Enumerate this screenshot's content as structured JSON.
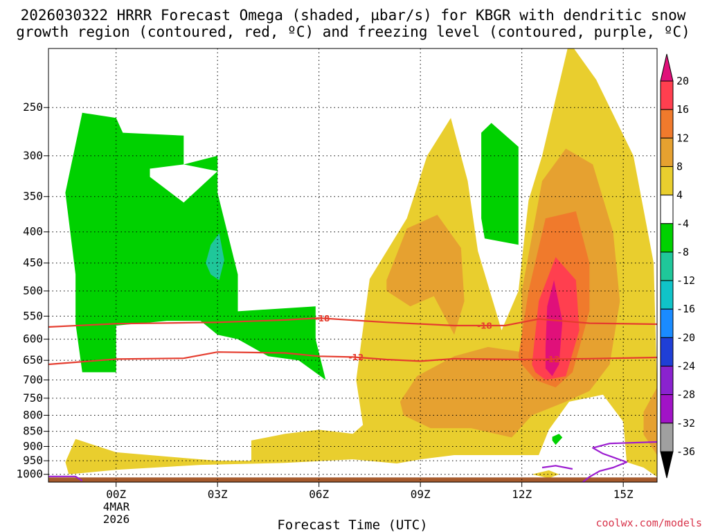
{
  "chart_data": {
    "type": "heatmap",
    "title": "2026030322 HRRR Forecast Omega (shaded, µbar/s) for KBGR with dendritic snow",
    "subtitle": "growth region (contoured, red, ºC) and freezing level (contoured, purple, ºC)",
    "xlabel": "Forecast Time (UTC)",
    "ylabel": "",
    "x_ticks": [
      "00Z",
      "03Z",
      "06Z",
      "09Z",
      "12Z",
      "15Z"
    ],
    "x_tick_hours": [
      0,
      3,
      6,
      9,
      12,
      15
    ],
    "x_date_label": [
      "4MAR",
      "2026"
    ],
    "xlim": [
      -2,
      16
    ],
    "y_ticks": [
      "250",
      "300",
      "350",
      "400",
      "450",
      "500",
      "550",
      "600",
      "650",
      "700",
      "750",
      "800",
      "850",
      "900",
      "950",
      "1000"
    ],
    "ylim": [
      1030,
      200
    ],
    "y_scale": "log-pressure",
    "grid": true,
    "colorbar": {
      "labels": [
        "20",
        "16",
        "12",
        "8",
        "4",
        "-4",
        "-8",
        "-12",
        "-16",
        "-20",
        "-24",
        "-28",
        "-32",
        "-36"
      ],
      "colors": [
        "#ff3f4f",
        "#f07a2c",
        "#e6a130",
        "#e9ce2e",
        "#ffffff",
        "#00d100",
        "#1fc79a",
        "#10c3c8",
        "#1a8bff",
        "#1f3fd6",
        "#8a22cf",
        "#a113c6",
        "#a0a0a0"
      ],
      "top_arrow_color": "#e0107a",
      "bottom_arrow_color": "#000000"
    },
    "contours": [
      {
        "name": "-18",
        "color": "#e53c2e",
        "points": [
          [
            -2,
            573
          ],
          [
            0,
            566
          ],
          [
            3,
            563
          ],
          [
            5,
            558
          ],
          [
            6,
            554
          ],
          [
            8,
            563
          ],
          [
            10,
            570
          ],
          [
            11.5,
            570
          ],
          [
            12.5,
            556
          ],
          [
            14,
            565
          ],
          [
            16,
            567
          ]
        ]
      },
      {
        "name": "-12",
        "color": "#e53c2e",
        "points": [
          [
            -2,
            660
          ],
          [
            0,
            647
          ],
          [
            2,
            645
          ],
          [
            3,
            630
          ],
          [
            5,
            632
          ],
          [
            6,
            640
          ],
          [
            7,
            642
          ],
          [
            8,
            648
          ],
          [
            9,
            652
          ],
          [
            10,
            646
          ],
          [
            12,
            648
          ],
          [
            14,
            646
          ],
          [
            16,
            643
          ]
        ]
      },
      {
        "name": "freezing level (0)",
        "color": "#9b1bd0",
        "points": [
          [
            -2.2,
            1008
          ],
          [
            -1.2,
            1008
          ],
          [
            -1,
            1025
          ]
        ]
      },
      {
        "name": "freezing level (0)",
        "color": "#9b1bd0",
        "points": [
          [
            16,
            885
          ],
          [
            14.6,
            890
          ],
          [
            14.1,
            905
          ],
          [
            14.4,
            925
          ],
          [
            15.1,
            955
          ],
          [
            14.7,
            975
          ],
          [
            14.3,
            988
          ],
          [
            14.0,
            1010
          ],
          [
            13.8,
            1030
          ]
        ]
      },
      {
        "name": "",
        "color": "#9b1bd0",
        "points": [
          [
            12.6,
            975
          ],
          [
            13,
            968
          ],
          [
            13.5,
            980
          ]
        ]
      }
    ],
    "contour_labels": [
      {
        "text": "-18",
        "x": 6.1,
        "y": 555
      },
      {
        "text": "-18",
        "x": 10.9,
        "y": 571
      },
      {
        "text": "-12",
        "x": 7.1,
        "y": 643
      },
      {
        "text": "-12",
        "x": 12.9,
        "y": 648
      }
    ],
    "shaded_regions": [
      {
        "value": "4 to 8",
        "color": "#e9ce2e",
        "points": [
          [
            -1.5,
            955
          ],
          [
            -1.2,
            875
          ],
          [
            0,
            920
          ],
          [
            2,
            940
          ],
          [
            3,
            950
          ],
          [
            4,
            950
          ],
          [
            4,
            880
          ],
          [
            5,
            858
          ],
          [
            6,
            845
          ],
          [
            7,
            858
          ],
          [
            7.3,
            830
          ],
          [
            7.1,
            700
          ],
          [
            7.5,
            478
          ],
          [
            8.6,
            380
          ],
          [
            9.2,
            300
          ],
          [
            9.9,
            260
          ],
          [
            10.4,
            330
          ],
          [
            10.7,
            430
          ],
          [
            11.4,
            580
          ],
          [
            11.9,
            500
          ],
          [
            12.2,
            355
          ],
          [
            12.6,
            300
          ],
          [
            13.4,
            195
          ],
          [
            14.2,
            225
          ],
          [
            15.3,
            300
          ],
          [
            15.9,
            450
          ],
          [
            16,
            720
          ],
          [
            16,
            1010
          ],
          [
            15.6,
            975
          ],
          [
            15.1,
            955
          ],
          [
            15.0,
            820
          ],
          [
            14.4,
            740
          ],
          [
            13.4,
            760
          ],
          [
            12.8,
            845
          ],
          [
            12.5,
            930
          ],
          [
            11.5,
            930
          ],
          [
            10.0,
            930
          ],
          [
            9.0,
            945
          ],
          [
            8.3,
            960
          ],
          [
            7.0,
            945
          ],
          [
            5.0,
            958
          ],
          [
            2.5,
            965
          ],
          [
            0.0,
            983
          ],
          [
            -1.4,
            1000
          ]
        ]
      },
      {
        "value": "4 to 8",
        "color": "#e9ce2e",
        "points": [
          [
            12.3,
            1000
          ],
          [
            12.8,
            985
          ],
          [
            13.1,
            1000
          ],
          [
            12.8,
            1015
          ]
        ]
      },
      {
        "value": "8 to 12",
        "color": "#e6a130",
        "points": [
          [
            8.0,
            480
          ],
          [
            8.6,
            395
          ],
          [
            9.5,
            375
          ],
          [
            10.2,
            425
          ],
          [
            10.3,
            520
          ],
          [
            10.0,
            590
          ],
          [
            9.4,
            510
          ],
          [
            8.7,
            530
          ],
          [
            8.0,
            500
          ]
        ]
      },
      {
        "value": "8 to 12",
        "color": "#e6a130",
        "points": [
          [
            8.4,
            760
          ],
          [
            8.9,
            690
          ],
          [
            10.0,
            640
          ],
          [
            11.0,
            618
          ],
          [
            12.0,
            630
          ],
          [
            12.0,
            500
          ],
          [
            12.6,
            330
          ],
          [
            13.3,
            292
          ],
          [
            14.1,
            310
          ],
          [
            14.7,
            400
          ],
          [
            14.9,
            520
          ],
          [
            14.6,
            660
          ],
          [
            14.0,
            730
          ],
          [
            13.3,
            760
          ],
          [
            12.3,
            800
          ],
          [
            11.7,
            870
          ],
          [
            10.5,
            840
          ],
          [
            9.3,
            840
          ],
          [
            8.5,
            800
          ]
        ]
      },
      {
        "value": "8 to 12",
        "color": "#e6a130",
        "points": [
          [
            16,
            720
          ],
          [
            15.6,
            790
          ],
          [
            15.6,
            860
          ],
          [
            16,
            930
          ]
        ]
      },
      {
        "value": "12 to 16",
        "color": "#f07a2c",
        "points": [
          [
            11.9,
            640
          ],
          [
            12.2,
            500
          ],
          [
            12.7,
            380
          ],
          [
            13.6,
            370
          ],
          [
            14.0,
            450
          ],
          [
            14.0,
            540
          ],
          [
            13.5,
            680
          ],
          [
            13.0,
            720
          ],
          [
            12.4,
            700
          ],
          [
            12.0,
            660
          ]
        ]
      },
      {
        "value": "16 to 20",
        "color": "#ff3f4f",
        "points": [
          [
            12.3,
            660
          ],
          [
            12.5,
            520
          ],
          [
            13.0,
            440
          ],
          [
            13.6,
            480
          ],
          [
            13.7,
            580
          ],
          [
            13.3,
            690
          ],
          [
            12.7,
            700
          ],
          [
            12.4,
            680
          ]
        ]
      },
      {
        "value": "> 20",
        "color": "#e0107a",
        "points": [
          [
            12.7,
            620
          ],
          [
            12.75,
            530
          ],
          [
            12.95,
            480
          ],
          [
            13.2,
            560
          ],
          [
            13.1,
            660
          ],
          [
            12.9,
            690
          ],
          [
            12.7,
            670
          ]
        ]
      },
      {
        "value": "-4 to -8",
        "color": "#00d100",
        "points": [
          [
            -1.0,
            680
          ],
          [
            -1.2,
            565
          ],
          [
            -1.2,
            470
          ],
          [
            -1.5,
            345
          ],
          [
            -1.0,
            255
          ],
          [
            0,
            260
          ],
          [
            0.2,
            275
          ],
          [
            2.0,
            278
          ],
          [
            2.0,
            310
          ],
          [
            3.0,
            300
          ],
          [
            3.0,
            345
          ],
          [
            3.6,
            470
          ],
          [
            3.6,
            540
          ],
          [
            5.9,
            530
          ],
          [
            5.9,
            600
          ],
          [
            6.2,
            700
          ],
          [
            5.4,
            650
          ],
          [
            4.5,
            640
          ],
          [
            3.6,
            600
          ],
          [
            3.0,
            590
          ],
          [
            2.5,
            560
          ],
          [
            1.5,
            560
          ],
          [
            0,
            570
          ],
          [
            0,
            680
          ]
        ]
      },
      {
        "value": "-4 to -8",
        "color": "#00d100",
        "points": [
          [
            10.8,
            300
          ],
          [
            10.8,
            275
          ],
          [
            11.1,
            265
          ],
          [
            11.9,
            290
          ],
          [
            11.9,
            420
          ],
          [
            10.9,
            410
          ],
          [
            10.8,
            380
          ]
        ]
      },
      {
        "value": "-4 to -8",
        "color": "#00d100",
        "points": [
          [
            12.9,
            868
          ],
          [
            13.1,
            858
          ],
          [
            13.2,
            870
          ],
          [
            13.0,
            895
          ],
          [
            12.9,
            880
          ]
        ]
      },
      {
        "value": "-8 to -12",
        "color": "#1fc79a",
        "points": [
          [
            2.65,
            450
          ],
          [
            2.8,
            420
          ],
          [
            3.05,
            402
          ],
          [
            3.2,
            445
          ],
          [
            3.05,
            480
          ],
          [
            2.8,
            470
          ]
        ]
      },
      {
        "value": "0 hole",
        "color": "#ffffff",
        "points": [
          [
            1.0,
            315
          ],
          [
            2.0,
            310
          ],
          [
            3.0,
            318
          ],
          [
            2.0,
            358
          ],
          [
            1.0,
            325
          ]
        ]
      }
    ],
    "surface_bar_color": "#a65a2c"
  },
  "credit": "coolwx.com/models"
}
